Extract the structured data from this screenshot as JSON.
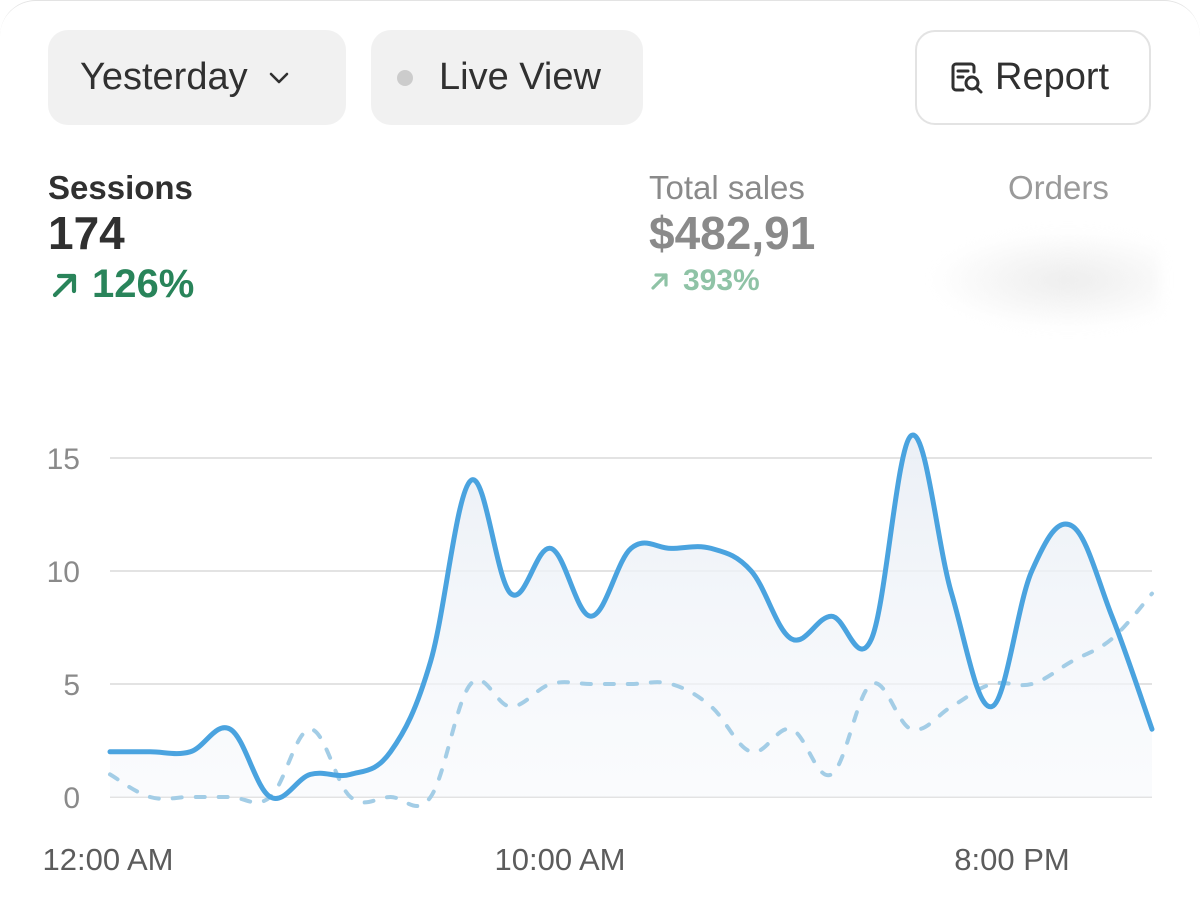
{
  "controls": {
    "date_range": "Yesterday",
    "live_view": "Live View",
    "report": "Report"
  },
  "metrics": {
    "sessions": {
      "label": "Sessions",
      "value": "174",
      "change": "126%"
    },
    "total_sales": {
      "label": "Total sales",
      "value": "$482,91",
      "change": "393%"
    },
    "orders": {
      "label": "Orders"
    }
  },
  "colors": {
    "primary_line": "#4aa3df",
    "comparison_line": "#a3cde6",
    "positive": "#29845a"
  },
  "chart_data": {
    "type": "line",
    "x_tick_labels": [
      "12:00 AM",
      "10:00 AM",
      "8:00 PM"
    ],
    "y_ticks": [
      0,
      5,
      10,
      15
    ],
    "ylim": [
      0,
      15
    ],
    "grid": true,
    "series": [
      {
        "style": "solid",
        "values": [
          2,
          2,
          2,
          3,
          0,
          1,
          1,
          2,
          6,
          14,
          9,
          11,
          8,
          11,
          11,
          11,
          10,
          7,
          8,
          7,
          16,
          9,
          4,
          10,
          12,
          8,
          3
        ]
      },
      {
        "style": "dashed",
        "values": [
          1,
          0,
          0,
          0,
          0,
          3,
          0,
          0,
          0,
          5,
          4,
          5,
          5,
          5,
          5,
          4,
          2,
          3,
          1,
          5,
          3,
          4,
          5,
          5,
          6,
          7,
          9
        ]
      }
    ]
  }
}
